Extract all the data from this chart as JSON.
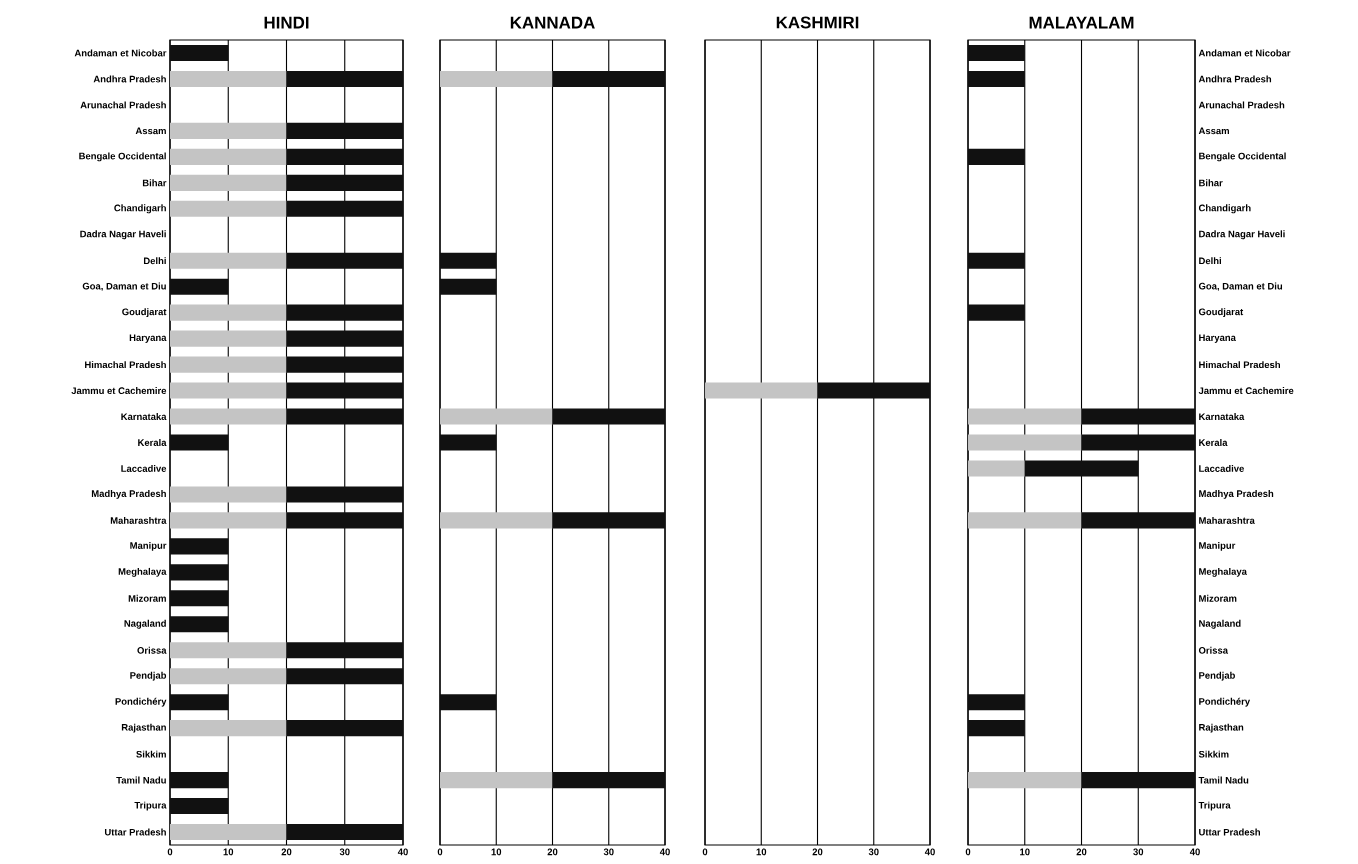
{
  "chart_data": [
    {
      "type": "bar",
      "orientation": "horizontal",
      "stacked": true,
      "title": "HINDI",
      "grid": "x",
      "xlim": [
        0,
        40
      ],
      "xticks": [
        0,
        10,
        20,
        30,
        40
      ],
      "categories": [
        "Andaman et Nicobar",
        "Andhra Pradesh",
        "Arunachal Pradesh",
        "Assam",
        "Bengale Occidental",
        "Bihar",
        "Chandigarh",
        "Dadra Nagar Haveli",
        "Delhi",
        "Goa, Daman et Diu",
        "Goudjarat",
        "Haryana",
        "Himachal Pradesh",
        "Jammu et Cachemire",
        "Karnataka",
        "Kerala",
        "Laccadive",
        "Madhya Pradesh",
        "Maharashtra",
        "Manipur",
        "Meghalaya",
        "Mizoram",
        "Nagaland",
        "Orissa",
        "Pendjab",
        "Pondichéry",
        "Rajasthan",
        "Sikkim",
        "Tamil Nadu",
        "Tripura",
        "Uttar Pradesh"
      ],
      "series": [
        {
          "color": "#c4c4c4",
          "values": [
            null,
            20,
            null,
            20,
            20,
            20,
            20,
            null,
            20,
            null,
            20,
            20,
            20,
            20,
            20,
            null,
            null,
            20,
            20,
            null,
            null,
            null,
            null,
            20,
            20,
            null,
            20,
            null,
            null,
            null,
            20
          ]
        },
        {
          "color": "#111111",
          "values": [
            10,
            20,
            null,
            20,
            20,
            20,
            20,
            null,
            20,
            10,
            20,
            20,
            20,
            20,
            20,
            10,
            null,
            20,
            20,
            10,
            10,
            10,
            10,
            20,
            20,
            10,
            20,
            null,
            10,
            10,
            20
          ]
        }
      ]
    },
    {
      "type": "bar",
      "orientation": "horizontal",
      "stacked": true,
      "title": "KANNADA",
      "grid": "x",
      "xlim": [
        0,
        40
      ],
      "xticks": [
        0,
        10,
        20,
        30,
        40
      ],
      "categories": [
        null,
        null,
        null,
        null,
        null,
        null,
        null,
        null,
        null,
        null,
        null,
        null,
        null,
        null,
        null,
        null,
        null,
        null,
        null,
        null,
        null,
        null,
        null,
        null,
        null,
        null,
        null,
        null,
        null,
        null,
        null
      ],
      "series": [
        {
          "color": "#c4c4c4",
          "values": [
            null,
            20,
            null,
            null,
            null,
            null,
            null,
            null,
            null,
            null,
            null,
            null,
            null,
            null,
            20,
            null,
            null,
            null,
            20,
            null,
            null,
            null,
            null,
            null,
            null,
            null,
            null,
            null,
            20,
            null,
            null
          ]
        },
        {
          "color": "#111111",
          "values": [
            null,
            20,
            null,
            null,
            null,
            null,
            null,
            null,
            10,
            10,
            null,
            null,
            null,
            null,
            20,
            10,
            null,
            null,
            20,
            null,
            null,
            null,
            null,
            null,
            null,
            10,
            null,
            null,
            20,
            null,
            null
          ]
        }
      ]
    },
    {
      "type": "bar",
      "orientation": "horizontal",
      "stacked": true,
      "title": "KASHMIRI",
      "grid": "x",
      "xlim": [
        0,
        40
      ],
      "xticks": [
        0,
        10,
        20,
        30,
        40
      ],
      "categories": [
        null,
        null,
        null,
        null,
        null,
        null,
        null,
        null,
        null,
        null,
        null,
        null,
        null,
        null,
        null,
        null,
        null,
        null,
        null,
        null,
        null,
        null,
        null,
        null,
        null,
        null,
        null,
        null,
        null,
        null,
        null
      ],
      "series": [
        {
          "color": "#c4c4c4",
          "values": [
            null,
            null,
            null,
            null,
            null,
            null,
            null,
            null,
            null,
            null,
            null,
            null,
            null,
            20,
            null,
            null,
            null,
            null,
            null,
            null,
            null,
            null,
            null,
            null,
            null,
            null,
            null,
            null,
            null,
            null,
            null
          ]
        },
        {
          "color": "#111111",
          "values": [
            null,
            null,
            null,
            null,
            null,
            null,
            null,
            null,
            null,
            null,
            null,
            null,
            null,
            20,
            null,
            null,
            null,
            null,
            null,
            null,
            null,
            null,
            null,
            null,
            null,
            null,
            null,
            null,
            null,
            null,
            null
          ]
        }
      ]
    },
    {
      "type": "bar",
      "orientation": "horizontal",
      "stacked": true,
      "title": "MALAYALAM",
      "grid": "x",
      "xlim": [
        0,
        40
      ],
      "xticks": [
        0,
        10,
        20,
        30,
        40
      ],
      "categories": [
        "Andaman et Nicobar",
        "Andhra Pradesh",
        "Arunachal Pradesh",
        "Assam",
        "Bengale Occidental",
        "Bihar",
        "Chandigarh",
        "Dadra Nagar Haveli",
        "Delhi",
        "Goa, Daman et Diu",
        "Goudjarat",
        "Haryana",
        "Himachal Pradesh",
        "Jammu et Cachemire",
        "Karnataka",
        "Kerala",
        "Laccadive",
        "Madhya Pradesh",
        "Maharashtra",
        "Manipur",
        "Meghalaya",
        "Mizoram",
        "Nagaland",
        "Orissa",
        "Pendjab",
        "Pondichéry",
        "Rajasthan",
        "Sikkim",
        "Tamil Nadu",
        "Tripura",
        "Uttar Pradesh"
      ],
      "series": [
        {
          "color": "#c4c4c4",
          "values": [
            null,
            null,
            null,
            null,
            null,
            null,
            null,
            null,
            null,
            null,
            null,
            null,
            null,
            null,
            20,
            20,
            10,
            null,
            20,
            null,
            null,
            null,
            null,
            null,
            null,
            null,
            null,
            null,
            20,
            null,
            null
          ]
        },
        {
          "color": "#111111",
          "values": [
            10,
            10,
            null,
            null,
            10,
            null,
            null,
            null,
            10,
            null,
            10,
            null,
            null,
            null,
            20,
            20,
            20,
            null,
            20,
            null,
            null,
            null,
            null,
            null,
            null,
            10,
            10,
            null,
            20,
            null,
            null
          ]
        }
      ]
    }
  ]
}
